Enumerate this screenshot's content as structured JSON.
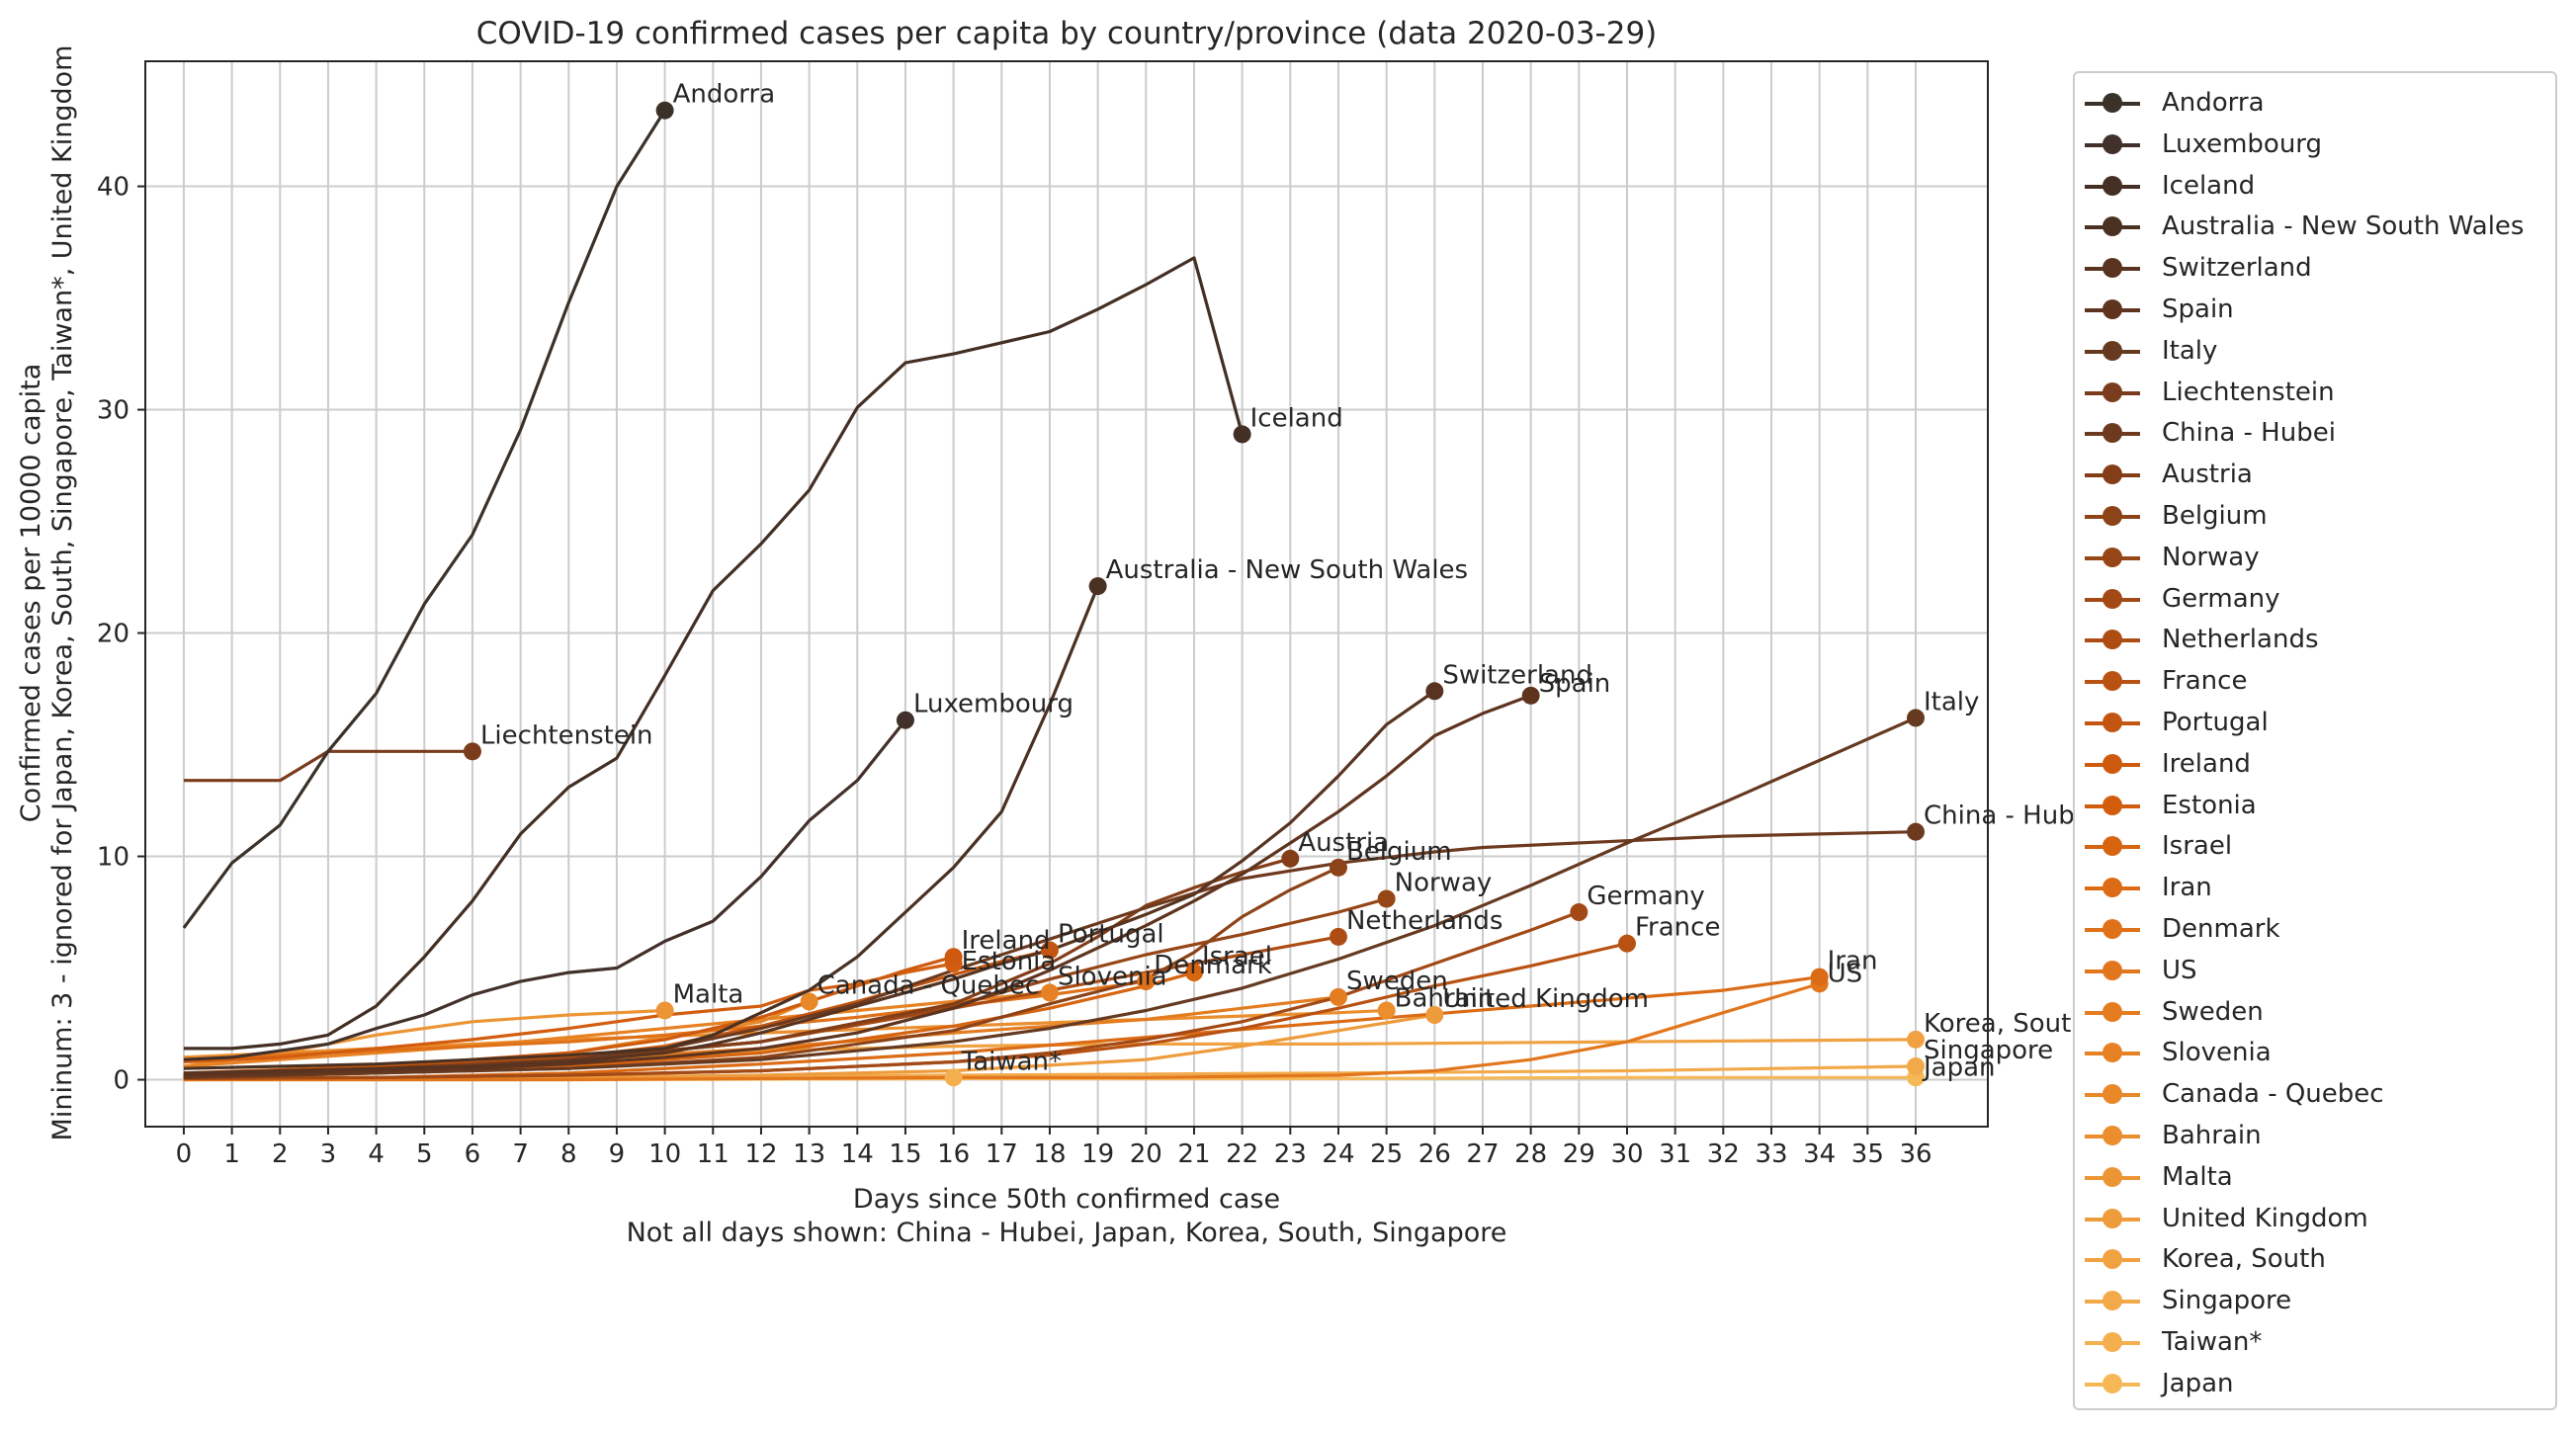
{
  "chart_data": {
    "type": "line",
    "title": "COVID-19 confirmed cases per capita by country/province (data 2020-03-29)",
    "xlabel": "Days since 50th confirmed case",
    "xlabel_note": "Not all days shown: China - Hubei, Japan, Korea, South, Singapore",
    "ylabel": "Mininum: 3 - ignored for Japan, Korea, South, Singapore, Taiwan*, United Kingdom",
    "ylabel2": "Confirmed cases per 10000 capita",
    "xlim": [
      -0.8,
      37.5
    ],
    "ylim": [
      -2.1,
      45.6
    ],
    "x_ticks": [
      0,
      1,
      2,
      3,
      4,
      5,
      6,
      7,
      8,
      9,
      10,
      11,
      12,
      13,
      14,
      15,
      16,
      17,
      18,
      19,
      20,
      21,
      22,
      23,
      24,
      25,
      26,
      27,
      28,
      29,
      30,
      31,
      32,
      33,
      34,
      35,
      36
    ],
    "y_ticks": [
      0,
      10,
      20,
      30,
      40
    ],
    "grid": true,
    "legend_placement": "outside-right",
    "series": [
      {
        "name": "Andorra",
        "color": "#3a3129",
        "x": [
          0,
          1,
          2,
          3,
          4,
          5,
          6,
          7,
          8,
          9,
          10
        ],
        "y": [
          6.8,
          9.7,
          11.4,
          14.7,
          17.3,
          21.3,
          24.4,
          29.1,
          34.8,
          40.0,
          43.4
        ]
      },
      {
        "name": "Luxembourg",
        "color": "#42302a",
        "x": [
          0,
          1,
          2,
          3,
          4,
          5,
          6,
          7,
          8,
          9,
          10,
          11,
          12,
          13,
          14,
          15
        ],
        "y": [
          0.9,
          1.0,
          1.3,
          1.6,
          2.3,
          2.9,
          3.8,
          4.4,
          4.8,
          5.0,
          6.2,
          7.1,
          9.1,
          11.6,
          13.4,
          16.1
        ]
      },
      {
        "name": "Iceland",
        "color": "#432f24",
        "x": [
          0,
          1,
          2,
          3,
          4,
          5,
          6,
          7,
          8,
          9,
          10,
          11,
          12,
          13,
          14,
          15,
          16,
          17,
          18,
          19,
          20,
          21,
          22
        ],
        "y": [
          1.4,
          1.4,
          1.6,
          2.0,
          3.3,
          5.5,
          8.0,
          11.0,
          13.1,
          14.4,
          18.1,
          21.9,
          24.0,
          26.4,
          30.1,
          32.1,
          32.5,
          33.0,
          33.5,
          34.5,
          35.6,
          36.8,
          28.9
        ]
      },
      {
        "name": "Australia - New South Wales",
        "color": "#4a3122",
        "x": [
          0,
          2,
          4,
          6,
          8,
          10,
          11,
          12,
          13,
          14,
          15,
          16,
          17,
          18,
          19
        ],
        "y": [
          0.5,
          0.6,
          0.7,
          0.9,
          1.1,
          1.4,
          2.0,
          3.0,
          4.0,
          5.5,
          7.5,
          9.5,
          12.0,
          16.8,
          22.1
        ]
      },
      {
        "name": "Switzerland",
        "color": "#573320",
        "x": [
          0,
          2,
          4,
          6,
          8,
          10,
          11,
          12,
          13,
          14,
          15,
          16,
          17,
          18,
          19,
          20,
          21,
          22,
          23,
          24,
          25,
          26
        ],
        "y": [
          0.3,
          0.4,
          0.5,
          0.6,
          0.8,
          1.2,
          1.6,
          2.1,
          2.7,
          3.3,
          3.9,
          4.5,
          5.2,
          5.8,
          6.6,
          7.4,
          8.3,
          9.8,
          11.5,
          13.6,
          15.9,
          17.4
        ]
      },
      {
        "name": "Spain",
        "color": "#5e341f",
        "x": [
          0,
          2,
          4,
          6,
          8,
          10,
          12,
          14,
          16,
          17,
          18,
          19,
          20,
          21,
          22,
          23,
          24,
          25,
          26,
          27,
          28
        ],
        "y": [
          0.2,
          0.3,
          0.4,
          0.5,
          0.7,
          1.0,
          1.4,
          2.1,
          3.2,
          4.0,
          4.9,
          5.9,
          6.9,
          8.0,
          9.2,
          10.6,
          12.0,
          13.6,
          15.4,
          16.4,
          17.2
        ]
      },
      {
        "name": "Italy",
        "color": "#663a20",
        "x": [
          0,
          4,
          8,
          12,
          16,
          18,
          20,
          22,
          24,
          26,
          28,
          30,
          32,
          34,
          36
        ],
        "y": [
          0.1,
          0.3,
          0.5,
          0.9,
          1.7,
          2.3,
          3.1,
          4.1,
          5.4,
          6.9,
          8.7,
          10.6,
          12.4,
          14.3,
          16.2
        ]
      },
      {
        "name": "Liechtenstein",
        "color": "#7a3c1c",
        "x": [
          0,
          1,
          2,
          3,
          4,
          5,
          6
        ],
        "y": [
          13.4,
          13.4,
          13.4,
          14.7,
          14.7,
          14.7,
          14.7
        ]
      },
      {
        "name": "China - Hubei",
        "color": "#6e3a1f",
        "x": [
          0,
          2,
          4,
          6,
          8,
          10,
          12,
          14,
          16,
          18,
          20,
          22,
          24,
          26,
          27,
          30,
          32,
          34,
          36
        ],
        "y": [
          0.1,
          0.2,
          0.4,
          0.6,
          0.9,
          1.4,
          2.3,
          3.4,
          4.9,
          6.3,
          7.7,
          9.0,
          9.7,
          10.2,
          10.4,
          10.7,
          10.9,
          11.0,
          11.1
        ]
      },
      {
        "name": "Austria",
        "color": "#833e18",
        "x": [
          0,
          4,
          8,
          12,
          16,
          18,
          19,
          20,
          21,
          22,
          23
        ],
        "y": [
          0.2,
          0.5,
          0.9,
          1.7,
          3.4,
          5.2,
          6.4,
          7.8,
          8.6,
          9.3,
          9.9
        ]
      },
      {
        "name": "Belgium",
        "color": "#8c4318",
        "x": [
          0,
          4,
          8,
          12,
          16,
          18,
          20,
          21,
          22,
          23,
          24
        ],
        "y": [
          0.1,
          0.3,
          0.5,
          1.0,
          2.2,
          3.4,
          4.5,
          5.7,
          7.3,
          8.5,
          9.5
        ]
      },
      {
        "name": "Norway",
        "color": "#964617",
        "x": [
          0,
          4,
          8,
          12,
          16,
          18,
          20,
          22,
          24,
          25
        ],
        "y": [
          0.2,
          0.5,
          0.9,
          1.7,
          3.3,
          4.5,
          5.6,
          6.5,
          7.5,
          8.1
        ]
      },
      {
        "name": "Germany",
        "color": "#a24915",
        "x": [
          0,
          4,
          8,
          12,
          16,
          18,
          20,
          22,
          24,
          26,
          28,
          29
        ],
        "y": [
          0.05,
          0.1,
          0.2,
          0.4,
          0.8,
          1.2,
          1.8,
          2.6,
          3.7,
          5.2,
          6.7,
          7.5
        ]
      },
      {
        "name": "Netherlands",
        "color": "#ad4d14",
        "x": [
          0,
          4,
          8,
          12,
          16,
          18,
          20,
          22,
          24
        ],
        "y": [
          0.2,
          0.5,
          0.9,
          1.7,
          3.2,
          4.0,
          4.8,
          5.6,
          6.4
        ]
      },
      {
        "name": "France",
        "color": "#b85212",
        "x": [
          0,
          4,
          8,
          12,
          16,
          18,
          20,
          22,
          24,
          26,
          28,
          29,
          30
        ],
        "y": [
          0.05,
          0.1,
          0.2,
          0.4,
          0.8,
          1.1,
          1.6,
          2.3,
          3.2,
          4.2,
          5.1,
          5.6,
          6.1
        ]
      },
      {
        "name": "Portugal",
        "color": "#c25610",
        "x": [
          0,
          4,
          8,
          10,
          12,
          14,
          16,
          17,
          18
        ],
        "y": [
          0.2,
          0.5,
          1.0,
          1.5,
          2.4,
          3.5,
          4.7,
          5.3,
          5.8
        ]
      },
      {
        "name": "Ireland",
        "color": "#cd5a0e",
        "x": [
          0,
          4,
          8,
          10,
          12,
          13,
          14,
          15,
          16
        ],
        "y": [
          0.3,
          0.6,
          1.2,
          1.8,
          2.8,
          3.5,
          4.2,
          4.9,
          5.5
        ]
      },
      {
        "name": "Estonia",
        "color": "#d35d0e",
        "x": [
          0,
          2,
          4,
          6,
          8,
          10,
          12,
          13,
          14,
          15,
          16
        ],
        "y": [
          0.8,
          1.0,
          1.4,
          1.8,
          2.3,
          2.9,
          3.3,
          4.0,
          4.3,
          4.8,
          5.2
        ]
      },
      {
        "name": "Israel",
        "color": "#d7640f",
        "x": [
          0,
          4,
          8,
          12,
          16,
          18,
          20,
          21
        ],
        "y": [
          0.1,
          0.3,
          0.6,
          1.2,
          2.4,
          3.2,
          4.2,
          4.8
        ]
      },
      {
        "name": "Iran",
        "color": "#db6b14",
        "x": [
          0,
          4,
          8,
          12,
          16,
          20,
          24,
          28,
          32,
          34
        ],
        "y": [
          0.05,
          0.1,
          0.3,
          0.7,
          1.2,
          1.9,
          2.6,
          3.3,
          4.0,
          4.6
        ]
      },
      {
        "name": "Denmark",
        "color": "#df7118",
        "x": [
          0,
          2,
          4,
          6,
          8,
          10,
          12,
          14,
          16,
          18,
          20
        ],
        "y": [
          0.9,
          1.1,
          1.3,
          1.5,
          1.7,
          2.0,
          2.4,
          2.8,
          3.3,
          3.8,
          4.4
        ]
      },
      {
        "name": "US",
        "color": "#e2761c",
        "x": [
          0,
          4,
          8,
          12,
          16,
          20,
          24,
          26,
          28,
          30,
          32,
          34
        ],
        "y": [
          0.0,
          0.0,
          0.0,
          0.05,
          0.1,
          0.1,
          0.2,
          0.4,
          0.9,
          1.7,
          3.0,
          4.3
        ]
      },
      {
        "name": "Sweden",
        "color": "#e47c20",
        "x": [
          0,
          4,
          8,
          12,
          16,
          20,
          22,
          24
        ],
        "y": [
          0.1,
          0.5,
          0.9,
          1.4,
          2.1,
          2.7,
          3.2,
          3.7
        ]
      },
      {
        "name": "Slovenia",
        "color": "#e68224",
        "x": [
          0,
          2,
          4,
          6,
          8,
          10,
          12,
          14,
          16,
          18
        ],
        "y": [
          0.6,
          0.9,
          1.2,
          1.5,
          1.9,
          2.3,
          2.7,
          3.1,
          3.5,
          3.9
        ]
      },
      {
        "name": "Canada - Quebec",
        "color": "#e88828",
        "x": [
          0,
          4,
          8,
          12,
          13
        ],
        "y": [
          0.1,
          0.4,
          1.2,
          2.6,
          3.5
        ]
      },
      {
        "name": "Bahrain",
        "color": "#ea8e2e",
        "x": [
          0,
          4,
          8,
          12,
          16,
          20,
          24,
          25
        ],
        "y": [
          1.0,
          1.4,
          1.8,
          2.1,
          2.4,
          2.7,
          3.0,
          3.1
        ]
      },
      {
        "name": "Malta",
        "color": "#ec9535",
        "x": [
          0,
          2,
          4,
          6,
          8,
          10
        ],
        "y": [
          0.6,
          1.2,
          2.0,
          2.6,
          2.9,
          3.1
        ]
      },
      {
        "name": "United Kingdom",
        "color": "#ee9b3c",
        "x": [
          0,
          4,
          8,
          12,
          16,
          20,
          22,
          24,
          26
        ],
        "y": [
          0.0,
          0.05,
          0.1,
          0.2,
          0.4,
          0.9,
          1.5,
          2.2,
          2.9
        ]
      },
      {
        "name": "Korea, South",
        "color": "#f0a243",
        "x": [
          0,
          4,
          8,
          12,
          16,
          20,
          24,
          30,
          36
        ],
        "y": [
          0.1,
          0.3,
          0.8,
          1.3,
          1.5,
          1.6,
          1.6,
          1.7,
          1.8
        ]
      },
      {
        "name": "Singapore",
        "color": "#f2a949",
        "x": [
          0,
          8,
          16,
          24,
          30,
          36
        ],
        "y": [
          0.1,
          0.1,
          0.2,
          0.3,
          0.4,
          0.6
        ]
      },
      {
        "name": "Taiwan*",
        "color": "#f4b04f",
        "x": [
          0,
          4,
          8,
          12,
          16
        ],
        "y": [
          0.0,
          0.05,
          0.05,
          0.1,
          0.1
        ]
      },
      {
        "name": "Japan",
        "color": "#f6b856",
        "x": [
          0,
          8,
          16,
          24,
          30,
          36
        ],
        "y": [
          0.0,
          0.0,
          0.05,
          0.05,
          0.1,
          0.1
        ]
      }
    ],
    "end_labels": [
      {
        "text": "Andorra",
        "dx": 8,
        "dy": -8
      },
      {
        "text": "Luxembourg",
        "dx": 8,
        "dy": -8
      },
      {
        "text": "Iceland",
        "dx": 8,
        "dy": -8
      },
      {
        "text": "Australia - New South Wales",
        "dx": 8,
        "dy": -8
      },
      {
        "text": "Switzerland",
        "dx": 8,
        "dy": -8
      },
      {
        "text": "Spain",
        "dx": 8,
        "dy": -4
      },
      {
        "text": "Italy",
        "dx": 8,
        "dy": -8
      },
      {
        "text": "Liechtenstein",
        "dx": 8,
        "dy": -8
      },
      {
        "text": "China - Hubei",
        "dx": 8,
        "dy": -8
      },
      {
        "text": "Austria",
        "dx": 8,
        "dy": -8
      },
      {
        "text": "Belgium",
        "dx": 8,
        "dy": -8
      },
      {
        "text": "Norway",
        "dx": 8,
        "dy": -8
      },
      {
        "text": "Germany",
        "dx": 8,
        "dy": -8
      },
      {
        "text": "Netherlands",
        "dx": 8,
        "dy": -8
      },
      {
        "text": "France",
        "dx": 8,
        "dy": -8
      },
      {
        "text": "Portugal",
        "dx": 8,
        "dy": -8
      },
      {
        "text": "Ireland",
        "dx": 8,
        "dy": -8
      },
      {
        "text": "Estonia",
        "dx": 8,
        "dy": 6
      },
      {
        "text": "Israel",
        "dx": 8,
        "dy": -8
      },
      {
        "text": "Iran",
        "dx": 8,
        "dy": -8
      },
      {
        "text": "Denmark",
        "dx": 8,
        "dy": -8
      },
      {
        "text": "US",
        "dx": 8,
        "dy": -2
      },
      {
        "text": "Sweden",
        "dx": 8,
        "dy": -8
      },
      {
        "text": "Slovenia",
        "dx": 8,
        "dy": -8
      },
      {
        "text": "Canada - Quebec",
        "dx": 8,
        "dy": -8
      },
      {
        "text": "Bahrain",
        "dx": 8,
        "dy": -4
      },
      {
        "text": "Malta",
        "dx": 8,
        "dy": -8
      },
      {
        "text": "United Kingdom",
        "dx": 8,
        "dy": -8
      },
      {
        "text": "Korea, South",
        "dx": 8,
        "dy": -8
      },
      {
        "text": "Singapore",
        "dx": 8,
        "dy": -8
      },
      {
        "text": "Taiwan*",
        "dx": 8,
        "dy": -8
      },
      {
        "text": "Japan",
        "dx": 8,
        "dy": -2
      }
    ]
  }
}
